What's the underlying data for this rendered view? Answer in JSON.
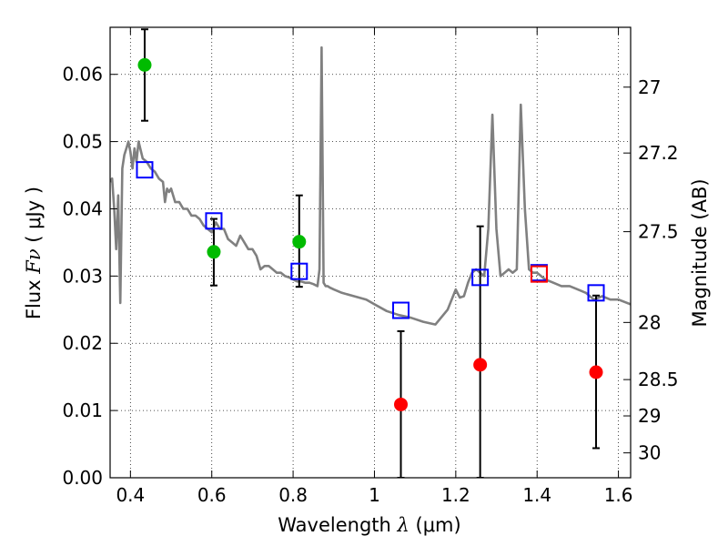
{
  "chart_data": {
    "type": "scatter",
    "xlabel": {
      "text": "Wavelength ",
      "symbol": "λ",
      "unit": " (μm)"
    },
    "ylabel": {
      "text": "Flux ",
      "symbol": "Fν",
      "unit": " ( μJy )"
    },
    "y2label": "Magnitude (AB)",
    "xlim": [
      0.35,
      1.63
    ],
    "ylim": [
      0.0,
      0.067
    ],
    "grid": true,
    "x_ticks": [
      0.4,
      0.6,
      0.8,
      1.0,
      1.2,
      1.4,
      1.6
    ],
    "x_tick_labels": [
      "0.4",
      "0.6",
      "0.8",
      "1",
      "1.2",
      "1.4",
      "1.6"
    ],
    "y_ticks": [
      0.0,
      0.01,
      0.02,
      0.03,
      0.04,
      0.05,
      0.06
    ],
    "y_tick_labels": [
      "0.00",
      "0.01",
      "0.02",
      "0.03",
      "0.04",
      "0.05",
      "0.06"
    ],
    "y2_ticks": [
      {
        "label": "27",
        "flux": 0.0581
      },
      {
        "label": "27.2",
        "flux": 0.0483
      },
      {
        "label": "27.5",
        "flux": 0.0366
      },
      {
        "label": "28",
        "flux": 0.0231
      },
      {
        "label": "28.5",
        "flux": 0.0146
      },
      {
        "label": "29",
        "flux": 0.0092
      },
      {
        "label": "30",
        "flux": 0.0037
      }
    ],
    "series": [
      {
        "kind": "line",
        "color": "#808080",
        "x": [
          0.35,
          0.355,
          0.36,
          0.365,
          0.37,
          0.375,
          0.38,
          0.385,
          0.39,
          0.395,
          0.4,
          0.405,
          0.41,
          0.415,
          0.42,
          0.43,
          0.44,
          0.45,
          0.46,
          0.47,
          0.48,
          0.485,
          0.49,
          0.495,
          0.5,
          0.51,
          0.52,
          0.53,
          0.54,
          0.55,
          0.56,
          0.57,
          0.58,
          0.59,
          0.6,
          0.61,
          0.62,
          0.63,
          0.64,
          0.65,
          0.66,
          0.67,
          0.68,
          0.69,
          0.7,
          0.71,
          0.72,
          0.73,
          0.74,
          0.75,
          0.76,
          0.77,
          0.78,
          0.79,
          0.8,
          0.81,
          0.82,
          0.83,
          0.84,
          0.85,
          0.86,
          0.865,
          0.87,
          0.875,
          0.878,
          0.88,
          0.885,
          0.89,
          0.9,
          0.92,
          0.95,
          0.98,
          1.0,
          1.03,
          1.06,
          1.09,
          1.12,
          1.15,
          1.18,
          1.2,
          1.21,
          1.22,
          1.23,
          1.24,
          1.25,
          1.26,
          1.27,
          1.28,
          1.29,
          1.3,
          1.31,
          1.32,
          1.33,
          1.34,
          1.35,
          1.36,
          1.37,
          1.38,
          1.39,
          1.4,
          1.42,
          1.44,
          1.46,
          1.48,
          1.5,
          1.52,
          1.54,
          1.56,
          1.58,
          1.6,
          1.63
        ],
        "y": [
          0.044,
          0.0445,
          0.04,
          0.034,
          0.042,
          0.026,
          0.046,
          0.048,
          0.049,
          0.05,
          0.0485,
          0.046,
          0.049,
          0.047,
          0.05,
          0.0475,
          0.047,
          0.046,
          0.0455,
          0.0445,
          0.044,
          0.041,
          0.043,
          0.0425,
          0.043,
          0.041,
          0.041,
          0.04,
          0.04,
          0.039,
          0.039,
          0.0385,
          0.0375,
          0.037,
          0.0365,
          0.038,
          0.037,
          0.037,
          0.0355,
          0.035,
          0.0345,
          0.036,
          0.035,
          0.034,
          0.034,
          0.033,
          0.031,
          0.0315,
          0.0315,
          0.031,
          0.0305,
          0.0305,
          0.03,
          0.0298,
          0.0295,
          0.0292,
          0.0292,
          0.029,
          0.029,
          0.0288,
          0.0285,
          0.031,
          0.064,
          0.029,
          0.0287,
          0.0285,
          0.0285,
          0.0283,
          0.028,
          0.0275,
          0.027,
          0.0265,
          0.0258,
          0.0248,
          0.0242,
          0.0238,
          0.0232,
          0.0228,
          0.025,
          0.028,
          0.0268,
          0.027,
          0.029,
          0.0305,
          0.031,
          0.0305,
          0.03,
          0.037,
          0.054,
          0.037,
          0.03,
          0.0305,
          0.031,
          0.0305,
          0.031,
          0.0555,
          0.04,
          0.031,
          0.0305,
          0.0305,
          0.0295,
          0.029,
          0.0285,
          0.0285,
          0.028,
          0.0275,
          0.0265,
          0.027,
          0.0265,
          0.0265,
          0.0258
        ]
      },
      {
        "kind": "markers",
        "marker": "open-square",
        "color": "#0000ff",
        "x": [
          0.435,
          0.605,
          0.815,
          1.065,
          1.26,
          1.405,
          1.545
        ],
        "y": [
          0.0458,
          0.0382,
          0.0307,
          0.0249,
          0.0298,
          0.0305,
          0.0275
        ]
      },
      {
        "kind": "markers",
        "marker": "open-square",
        "color": "#ff0000",
        "x": [
          1.405
        ],
        "y": [
          0.0303
        ]
      },
      {
        "kind": "markers",
        "marker": "filled-circle",
        "color": "#00bb00",
        "x": [
          0.435,
          0.605,
          0.815
        ],
        "y": [
          0.0614,
          0.0336,
          0.0351
        ],
        "yerr_low": [
          0.0531,
          0.0286,
          0.0284
        ],
        "yerr_high": [
          0.0667,
          0.0385,
          0.042
        ]
      },
      {
        "kind": "markers",
        "marker": "filled-circle",
        "color": "#ff0000",
        "x": [
          1.065,
          1.26,
          1.545
        ],
        "y": [
          0.0109,
          0.0168,
          0.0157
        ],
        "yerr_low": [
          0.0,
          0.0,
          0.0044
        ],
        "yerr_high": [
          0.0218,
          0.0374,
          0.0271
        ]
      }
    ]
  }
}
